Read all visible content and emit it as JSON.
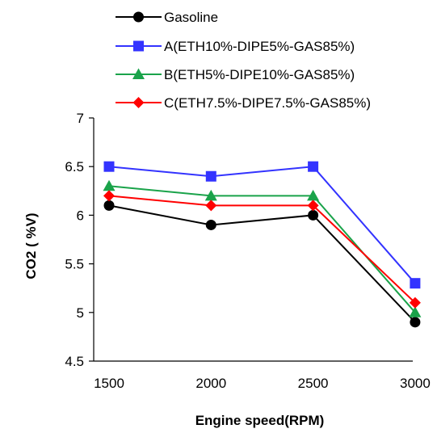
{
  "chart_data": {
    "type": "line",
    "title": "",
    "xlabel": "Engine speed(RPM)",
    "ylabel": "CO2 ( %V)",
    "categories": [
      "1500",
      "2000",
      "2500",
      "3000"
    ],
    "ylim": [
      4.5,
      7
    ],
    "yticks": [
      "4.5",
      "5",
      "5.5",
      "6",
      "6.5",
      "7"
    ],
    "grid": false,
    "legend_position": "top",
    "series": [
      {
        "name": "Gasoline",
        "values": [
          6.1,
          5.9,
          6.0,
          4.9
        ],
        "color": "#000000",
        "marker": "circle"
      },
      {
        "name": "A(ETH10%-DIPE5%-GAS85%)",
        "values": [
          6.5,
          6.4,
          6.5,
          5.3
        ],
        "color": "#3333ff",
        "marker": "square"
      },
      {
        "name": "B(ETH5%-DIPE10%-GAS85%)",
        "values": [
          6.3,
          6.2,
          6.2,
          5.0
        ],
        "color": "#1aa34a",
        "marker": "triangle"
      },
      {
        "name": "C(ETH7.5%-DIPE7.5%-GAS85%)",
        "values": [
          6.2,
          6.1,
          6.1,
          5.1
        ],
        "color": "#ff0000",
        "marker": "diamond"
      }
    ]
  }
}
